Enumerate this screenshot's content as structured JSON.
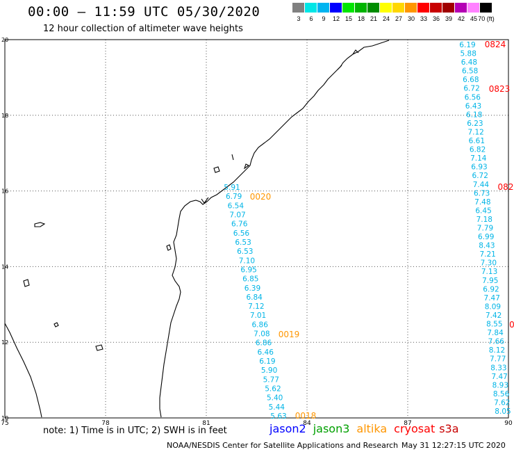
{
  "header": {
    "title": "00:00 — 11:59 UTC 05/30/2020",
    "subtitle": "12 hour collection of altimeter wave heights"
  },
  "scale": {
    "labels": [
      "3",
      "6",
      "9",
      "12",
      "15",
      "18",
      "21",
      "24",
      "27",
      "30",
      "33",
      "36",
      "39",
      "42",
      "45",
      "70 (ft)"
    ],
    "colors": [
      "#808080",
      "#00e6e6",
      "#00b4f0",
      "#0000ff",
      "#00e600",
      "#00b400",
      "#008c00",
      "#ffff00",
      "#ffd700",
      "#ff9600",
      "#ff0000",
      "#c80000",
      "#a00000",
      "#b400b4",
      "#ff82ff",
      "#000000"
    ]
  },
  "axes": {
    "x_ticks": [
      "75",
      "78",
      "81",
      "84",
      "87",
      "90"
    ],
    "y_ticks": [
      "10",
      "12",
      "14",
      "16",
      "18",
      "20"
    ]
  },
  "colors": {
    "jason2": "#0000ff",
    "jason3": "#00a000",
    "altika": "#ff9600",
    "cryosat": "#ff0000",
    "s3a": "#c80000",
    "swh": "#00b4e6",
    "coast": "#000000",
    "grid": "#555555"
  },
  "track_a": {
    "values": [
      "5.91",
      "6.79",
      "6.54",
      "7.07",
      "6.76",
      "6.56",
      "6.53",
      "6.53",
      "7.10",
      "6.95",
      "6.85",
      "6.39",
      "6.84",
      "7.12",
      "7.01",
      "6.86",
      "7.08",
      "6.86",
      "6.46",
      "6.19",
      "5.90",
      "5.77",
      "5.62",
      "5.40",
      "5.44",
      "5.63"
    ],
    "time_labels": [
      "0020",
      "0019",
      "0018"
    ]
  },
  "track_b": {
    "values": [
      "6.19",
      "5.88",
      "6.48",
      "6.58",
      "6.68",
      "6.72",
      "6.56",
      "6.43",
      "6.18",
      "6.23",
      "7.12",
      "6.61",
      "6.82",
      "7.14",
      "6.93",
      "6.72",
      "7.44",
      "6.73",
      "7.48",
      "6.45",
      "7.18",
      "7.79",
      "6.99",
      "8.43",
      "7.21",
      "7.30",
      "7.13",
      "7.95",
      "6.92",
      "7.47",
      "8.09",
      "7.42",
      "8.55",
      "7.84",
      "7.66",
      "8.12",
      "7.77",
      "8.33",
      "7.47",
      "8.93",
      "8.56",
      "7.62",
      "8.05"
    ],
    "time_labels": [
      "0824",
      "0823",
      "082",
      "0"
    ]
  },
  "footer": {
    "note": "note: 1) Time is in UTC; 2) SWH is in feet",
    "missions": [
      "jason2",
      "jason3",
      "altika",
      "cryosat",
      "s3a"
    ],
    "credit": "NOAA/NESDIS Center for Satellite Applications and Research",
    "timestamp": "May 31 12:27:15 UTC 2020"
  }
}
